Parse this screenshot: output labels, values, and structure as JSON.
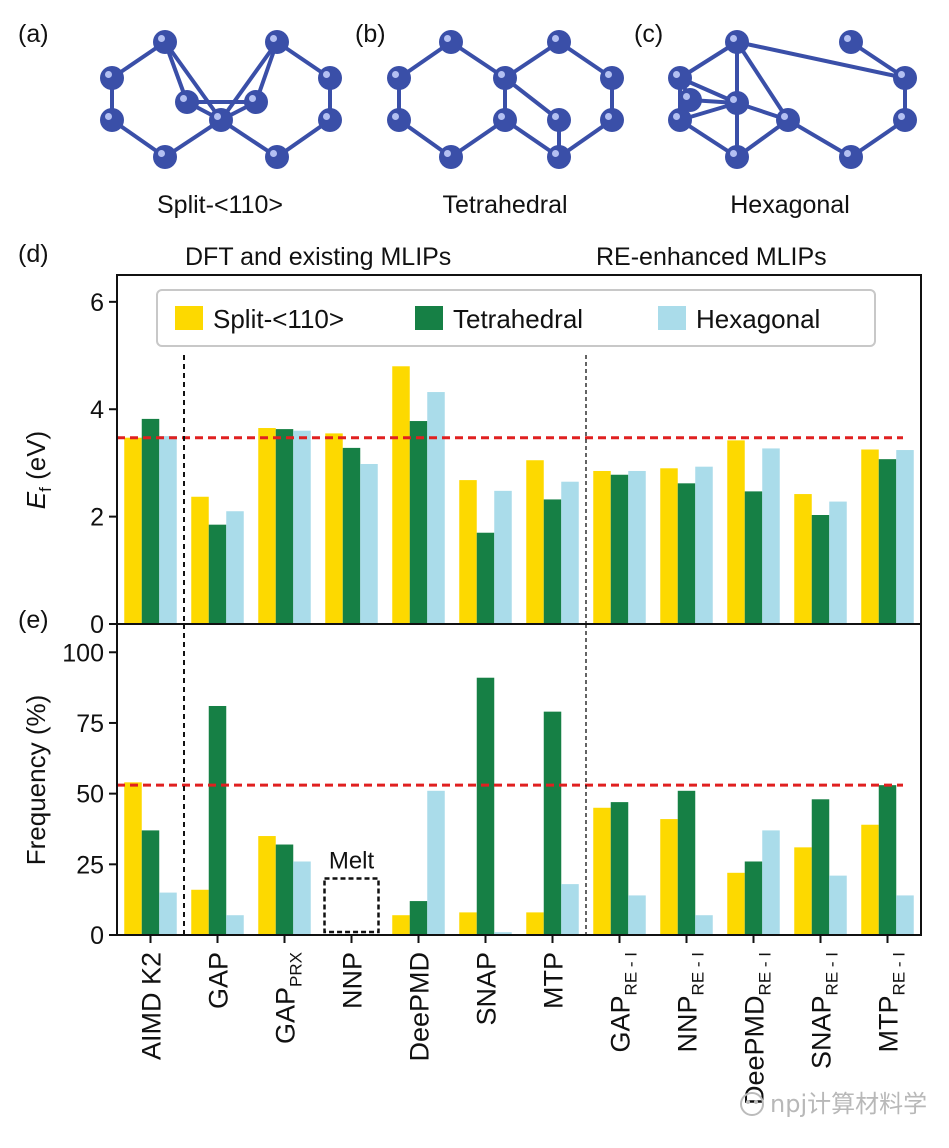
{
  "panels": {
    "a": {
      "tag": "(a)",
      "caption": "Split-<110>"
    },
    "b": {
      "tag": "(b)",
      "caption": "Tetrahedral"
    },
    "c": {
      "tag": "(c)",
      "caption": "Hexagonal"
    },
    "d": {
      "tag": "(d)"
    },
    "e": {
      "tag": "(e)"
    }
  },
  "section_labels": {
    "left": "DFT and existing MLIPs",
    "right": "RE-enhanced MLIPs"
  },
  "melt_label": "Melt",
  "watermark": "npj计算材料学",
  "colors": {
    "split": "#fdd900",
    "tetra": "#168045",
    "hex": "#aadcea",
    "ref_line": "#e02020",
    "atom": "#3a4fa8",
    "bond": "#3a4fa8"
  },
  "chart_data": [
    {
      "type": "bar",
      "id": "formation-energy",
      "ylabel_main": "E",
      "ylabel_sub": "f",
      "ylabel_unit": " (eV)",
      "ylim": [
        0,
        6.5
      ],
      "yticks": [
        0,
        2,
        4,
        6
      ],
      "reference_value": 3.47,
      "legend": [
        "Split-<110>",
        "Tetrahedral",
        "Hexagonal"
      ],
      "legend_position": "top-right",
      "series": [
        {
          "name": "Split-<110>",
          "values": [
            3.47,
            2.37,
            3.65,
            3.55,
            4.8,
            2.68,
            3.05,
            2.85,
            2.9,
            3.42,
            2.42,
            3.25
          ]
        },
        {
          "name": "Tetrahedral",
          "values": [
            3.82,
            1.85,
            3.63,
            3.28,
            3.78,
            1.7,
            2.32,
            2.78,
            2.62,
            2.47,
            2.03,
            3.07
          ]
        },
        {
          "name": "Hexagonal",
          "values": [
            3.5,
            2.1,
            3.6,
            2.98,
            4.32,
            2.48,
            2.65,
            2.85,
            2.93,
            3.27,
            2.28,
            3.24
          ]
        }
      ]
    },
    {
      "type": "bar",
      "id": "frequency",
      "ylabel": "Frequency (%)",
      "ylim": [
        0,
        110
      ],
      "yticks": [
        0,
        25,
        50,
        75,
        100
      ],
      "reference_value": 53,
      "series": [
        {
          "name": "Split-<110>",
          "values": [
            54,
            16,
            35,
            null,
            7,
            8,
            8,
            45,
            41,
            22,
            31,
            39
          ]
        },
        {
          "name": "Tetrahedral",
          "values": [
            37,
            81,
            32,
            null,
            12,
            91,
            79,
            47,
            51,
            26,
            48,
            53
          ]
        },
        {
          "name": "Hexagonal",
          "values": [
            15,
            7,
            26,
            null,
            51,
            1,
            18,
            14,
            7,
            37,
            21,
            14
          ]
        }
      ],
      "annotation": {
        "category_index": 3,
        "text": "Melt",
        "value_range": [
          0,
          20
        ]
      }
    }
  ],
  "categories": [
    {
      "main": "AIMD K2",
      "sub": ""
    },
    {
      "main": "GAP",
      "sub": ""
    },
    {
      "main": "GAP",
      "sub": "PRX"
    },
    {
      "main": "NNP",
      "sub": ""
    },
    {
      "main": "DeePMD",
      "sub": ""
    },
    {
      "main": "SNAP",
      "sub": ""
    },
    {
      "main": "MTP",
      "sub": ""
    },
    {
      "main": "GAP",
      "sub": "RE - I"
    },
    {
      "main": "NNP",
      "sub": "RE - I"
    },
    {
      "main": "DeePMD",
      "sub": "RE - I"
    },
    {
      "main": "SNAP",
      "sub": "RE - I"
    },
    {
      "main": "MTP",
      "sub": "RE - I"
    }
  ]
}
